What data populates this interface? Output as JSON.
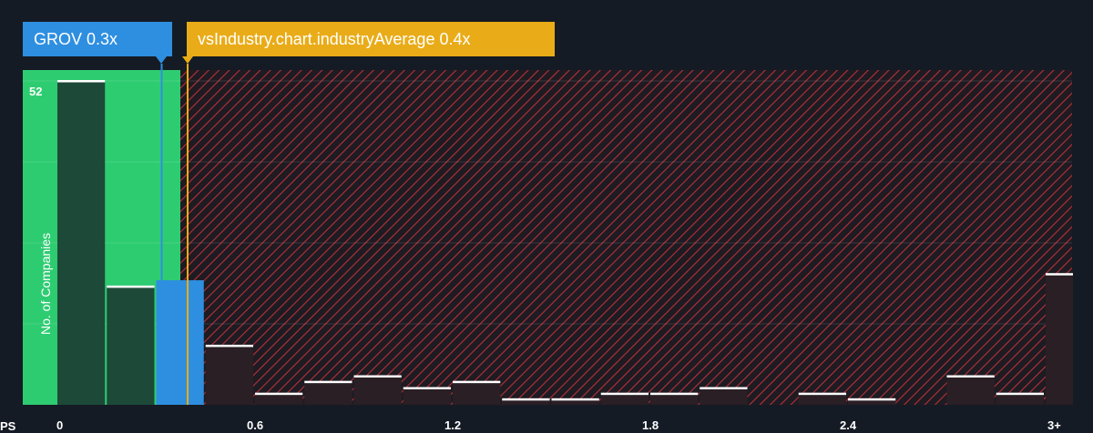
{
  "labels": {
    "company_tag": "GROV 0.3x",
    "industry_tag": "vsIndustry.chart.industryAverage 0.4x",
    "y_axis_label": "No. of Companies",
    "x_axis_prefix": "PS",
    "y_max_label": "52"
  },
  "colors": {
    "background": "#151b24",
    "company": "#2e8fe0",
    "industry": "#e9ac18",
    "good_zone": "#2ecc71",
    "good_bar": "#1d4a38",
    "overvalued_hatch": "#b5313a",
    "overvalued_bar": "#2a1f25",
    "bar_cap": "#ffffff"
  },
  "chart_data": {
    "type": "bar",
    "xlabel": "PS",
    "ylabel": "No. of Companies",
    "xlim": [
      0,
      3.0
    ],
    "ylim": [
      0,
      52
    ],
    "bin_width": 0.15,
    "company_value": 0.3,
    "industry_average": 0.4,
    "x_tick_labels": [
      {
        "value": 0,
        "label": "0"
      },
      {
        "value": 0.6,
        "label": "0.6"
      },
      {
        "value": 1.2,
        "label": "1.2"
      },
      {
        "value": 1.8,
        "label": "1.8"
      },
      {
        "value": 2.4,
        "label": "2.4"
      },
      {
        "value": 3.0,
        "label": "3+"
      }
    ],
    "bins": [
      {
        "x": 0.0,
        "value": 52
      },
      {
        "x": 0.15,
        "value": 19
      },
      {
        "x": 0.3,
        "value": 20,
        "highlight": true
      },
      {
        "x": 0.45,
        "value": 9.5
      },
      {
        "x": 0.6,
        "value": 1.8
      },
      {
        "x": 0.75,
        "value": 3.7
      },
      {
        "x": 0.9,
        "value": 4.6
      },
      {
        "x": 1.05,
        "value": 2.7
      },
      {
        "x": 1.2,
        "value": 3.7
      },
      {
        "x": 1.35,
        "value": 0.9
      },
      {
        "x": 1.5,
        "value": 0.9
      },
      {
        "x": 1.65,
        "value": 1.8
      },
      {
        "x": 1.8,
        "value": 1.8
      },
      {
        "x": 1.95,
        "value": 2.7
      },
      {
        "x": 2.1,
        "value": 0
      },
      {
        "x": 2.25,
        "value": 1.8
      },
      {
        "x": 2.4,
        "value": 0.9
      },
      {
        "x": 2.55,
        "value": 0
      },
      {
        "x": 2.7,
        "value": 4.6
      },
      {
        "x": 2.85,
        "value": 1.8
      },
      {
        "x": 3.0,
        "value": 21
      }
    ]
  }
}
